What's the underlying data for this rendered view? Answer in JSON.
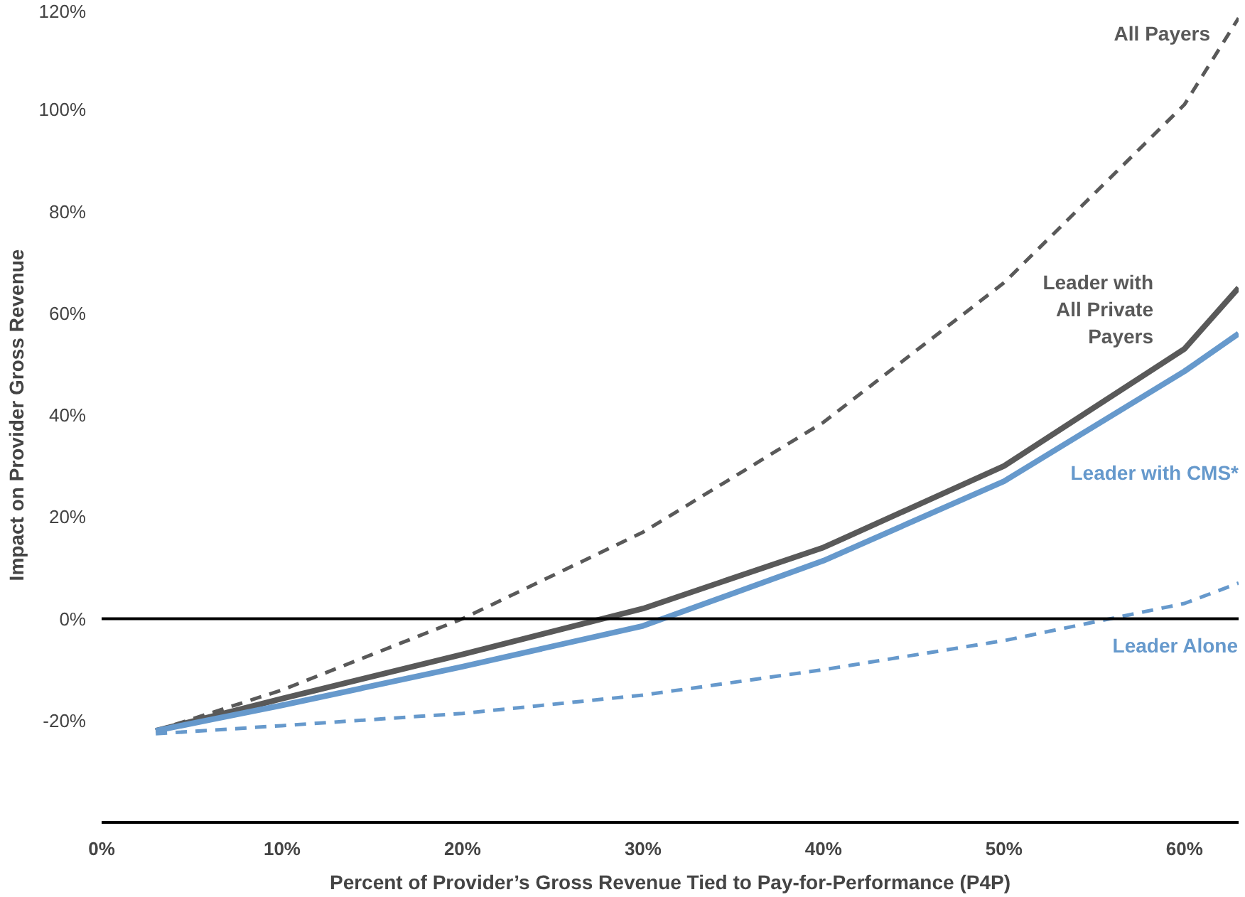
{
  "chart_data": {
    "type": "line",
    "xlabel": "Percent of Provider’s Gross Revenue Tied to Pay-for-Performance (P4P)",
    "ylabel": "Impact on Provider Gross Revenue",
    "x": [
      3,
      10,
      20,
      30,
      40,
      50,
      60,
      63
    ],
    "series": [
      {
        "name": "All Payers",
        "color": "#595959",
        "line_style": "dashed",
        "values": [
          -22,
          -14,
          0,
          17,
          38.6,
          66,
          101,
          118
        ]
      },
      {
        "name": "Leader with\nAll Private\nPayers",
        "color": "#595959",
        "line_style": "solid",
        "values": [
          -22,
          -15.7,
          -7,
          2,
          14,
          30,
          53,
          65
        ]
      },
      {
        "name": "Leader with CMS*",
        "color": "#6699cc",
        "line_style": "solid",
        "values": [
          -22,
          -17,
          -9.4,
          -1.4,
          11.4,
          27,
          48.6,
          56
        ]
      },
      {
        "name": "Leader Alone",
        "color": "#6699cc",
        "line_style": "dashed",
        "values": [
          -22.6,
          -21,
          -18.6,
          -15,
          -10,
          -4.3,
          3,
          7
        ]
      }
    ],
    "xlim": [
      0,
      63
    ],
    "ylim": [
      -40,
      120
    ],
    "xticks": [
      {
        "value": 0,
        "label": "0%"
      },
      {
        "value": 10,
        "label": "10%"
      },
      {
        "value": 20,
        "label": "20%"
      },
      {
        "value": 30,
        "label": "30%"
      },
      {
        "value": 40,
        "label": "40%"
      },
      {
        "value": 50,
        "label": "50%"
      },
      {
        "value": 60,
        "label": "60%"
      }
    ],
    "yticks": [
      {
        "value": -20,
        "label": "-20%"
      },
      {
        "value": 0,
        "label": "0%"
      },
      {
        "value": 20,
        "label": "20%"
      },
      {
        "value": 40,
        "label": "40%"
      },
      {
        "value": 60,
        "label": "60%"
      },
      {
        "value": 80,
        "label": "80%"
      },
      {
        "value": 100,
        "label": "100%"
      },
      {
        "value": 120,
        "label": "120%"
      }
    ],
    "ref_lines": [
      {
        "axis": "y",
        "value": 0,
        "color": "#000000"
      }
    ],
    "grid": false,
    "legend": false
  }
}
